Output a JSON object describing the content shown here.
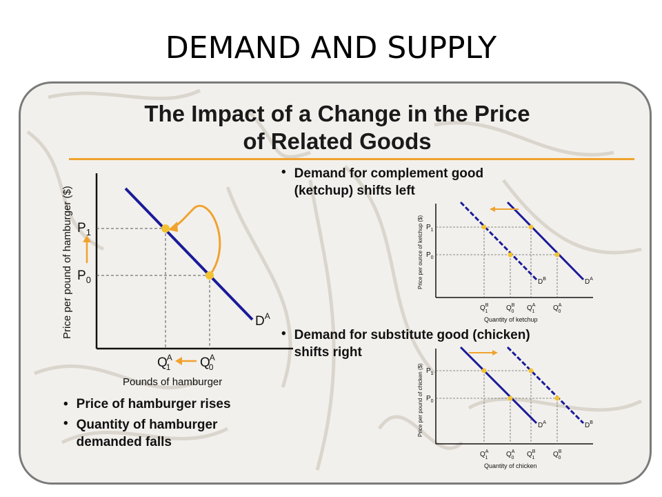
{
  "slide": {
    "title": "DEMAND AND SUPPLY"
  },
  "panel": {
    "heading_line1": "The Impact of a Change in the Price",
    "heading_line2": "of Related Goods"
  },
  "colors": {
    "curve": "#1a1a9a",
    "accent": "#f0a22e",
    "point": "#f2c230",
    "panel_bg": "#f2f0ec"
  },
  "main_chart": {
    "y_label": "Price per pound of hamburger ($)",
    "x_label": "Pounds of hamburger",
    "p1": "P",
    "p1_sub": "1",
    "p0": "P",
    "p0_sub": "0",
    "q1": "Q",
    "q1_sub": "1",
    "q1_sup": "A",
    "q0": "Q",
    "q0_sub": "0",
    "q0_sup": "A",
    "curve": "D",
    "curve_sup": "A"
  },
  "left_bullets": [
    "Price of hamburger rises",
    "Quantity of hamburger demanded falls"
  ],
  "left_bullet_lines": [
    "Price of hamburger rises",
    "Quantity of hamburger",
    "demanded falls"
  ],
  "bullet_glyph": "•",
  "right_bullets": {
    "complement_line1": "Demand for complement good",
    "complement_line2": "(ketchup) shifts left",
    "substitute_line1": "Demand for substitute good (chicken)",
    "substitute_line2": "shifts right"
  },
  "ketchup_chart": {
    "y_label": "Price per ounce of ketchup ($)",
    "x_label": "Quantity of ketchup",
    "p1": "P",
    "p1_sub": "1",
    "p0": "P",
    "p0_sub": "0",
    "ticks": [
      {
        "q": "Q",
        "sup": "B",
        "sub": "1"
      },
      {
        "q": "Q",
        "sup": "B",
        "sub": "0"
      },
      {
        "q": "Q",
        "sup": "A",
        "sub": "1"
      },
      {
        "q": "Q",
        "sup": "A",
        "sub": "0"
      }
    ],
    "curve_left": "D",
    "curve_left_sup": "B",
    "curve_right": "D",
    "curve_right_sup": "A"
  },
  "chicken_chart": {
    "y_label": "Price per pound of chicken ($)",
    "x_label": "Quantity of chicken",
    "p1": "P",
    "p1_sub": "1",
    "p0": "P",
    "p0_sub": "0",
    "ticks": [
      {
        "q": "Q",
        "sup": "A",
        "sub": "1"
      },
      {
        "q": "Q",
        "sup": "A",
        "sub": "0"
      },
      {
        "q": "Q",
        "sup": "B",
        "sub": "1"
      },
      {
        "q": "Q",
        "sup": "B",
        "sub": "0"
      }
    ],
    "curve_left": "D",
    "curve_left_sup": "A",
    "curve_right": "D",
    "curve_right_sup": "B"
  }
}
